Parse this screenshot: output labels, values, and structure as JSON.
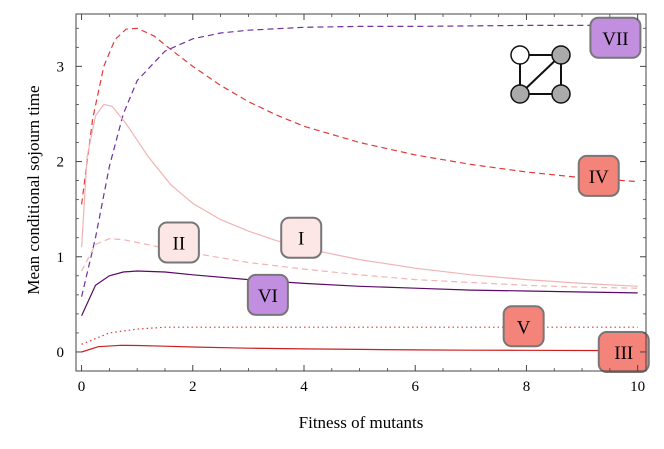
{
  "chart_data": {
    "type": "line",
    "xlabel": "Fitness of mutants",
    "ylabel": "Mean conditional sojourn time",
    "xlim": [
      -0.1,
      10.15
    ],
    "ylim": [
      -0.2,
      3.55
    ],
    "x_ticks": [
      0,
      2,
      4,
      6,
      8,
      10
    ],
    "y_ticks": [
      0,
      1,
      2,
      3
    ],
    "grid": false,
    "inset": "graph: 4 nodes (one white, three grey) in a square with one diagonal, top-right",
    "series": [
      {
        "name": "IV",
        "color": "#e03a3a",
        "dash": "dashed",
        "box_fill": "#f4837a",
        "label_pos": [
          9.3,
          1.85
        ],
        "points": [
          [
            0,
            1.55
          ],
          [
            0.2,
            2.45
          ],
          [
            0.4,
            3.0
          ],
          [
            0.6,
            3.28
          ],
          [
            0.8,
            3.39
          ],
          [
            1.0,
            3.4
          ],
          [
            1.3,
            3.32
          ],
          [
            1.6,
            3.18
          ],
          [
            2,
            3.0
          ],
          [
            2.5,
            2.8
          ],
          [
            3,
            2.63
          ],
          [
            3.5,
            2.49
          ],
          [
            4,
            2.37
          ],
          [
            5,
            2.2
          ],
          [
            6,
            2.07
          ],
          [
            7,
            1.97
          ],
          [
            8,
            1.89
          ],
          [
            9,
            1.83
          ],
          [
            10,
            1.79
          ]
        ]
      },
      {
        "name": "VII",
        "color": "#7030a0",
        "dash": "dashed",
        "box_fill": "#c28fe0",
        "label_pos": [
          9.6,
          3.3
        ],
        "points": [
          [
            0,
            0.58
          ],
          [
            0.25,
            1.2
          ],
          [
            0.5,
            1.95
          ],
          [
            0.75,
            2.5
          ],
          [
            1,
            2.85
          ],
          [
            1.5,
            3.16
          ],
          [
            2,
            3.29
          ],
          [
            2.5,
            3.35
          ],
          [
            3,
            3.38
          ],
          [
            4,
            3.41
          ],
          [
            5,
            3.42
          ],
          [
            6,
            3.42
          ],
          [
            8,
            3.43
          ],
          [
            10,
            3.43
          ]
        ]
      },
      {
        "name": "I",
        "color": "#f2b3b3",
        "dash": "solid",
        "box_fill": "#fde6e6",
        "label_pos": [
          3.95,
          1.2
        ],
        "points": [
          [
            0,
            1.1
          ],
          [
            0.1,
            2.05
          ],
          [
            0.25,
            2.48
          ],
          [
            0.4,
            2.6
          ],
          [
            0.55,
            2.58
          ],
          [
            0.8,
            2.4
          ],
          [
            1.2,
            2.05
          ],
          [
            1.6,
            1.76
          ],
          [
            2,
            1.56
          ],
          [
            2.5,
            1.39
          ],
          [
            3,
            1.27
          ],
          [
            3.5,
            1.17
          ],
          [
            4,
            1.09
          ],
          [
            5,
            0.97
          ],
          [
            6,
            0.88
          ],
          [
            7,
            0.81
          ],
          [
            8,
            0.76
          ],
          [
            9,
            0.72
          ],
          [
            10,
            0.69
          ]
        ]
      },
      {
        "name": "II",
        "color": "#f2b3b3",
        "dash": "dashed",
        "box_fill": "#fde6e6",
        "label_pos": [
          1.75,
          1.15
        ],
        "points": [
          [
            0,
            0.85
          ],
          [
            0.25,
            1.13
          ],
          [
            0.5,
            1.19
          ],
          [
            0.75,
            1.18
          ],
          [
            1,
            1.15
          ],
          [
            1.5,
            1.09
          ],
          [
            2,
            1.04
          ],
          [
            3,
            0.94
          ],
          [
            4,
            0.87
          ],
          [
            5,
            0.81
          ],
          [
            6,
            0.76
          ],
          [
            7,
            0.73
          ],
          [
            8,
            0.7
          ],
          [
            9,
            0.68
          ],
          [
            10,
            0.67
          ]
        ]
      },
      {
        "name": "VI",
        "color": "#5a0a66",
        "dash": "solid",
        "box_fill": "#c28fe0",
        "label_pos": [
          3.35,
          0.6
        ],
        "points": [
          [
            0,
            0.38
          ],
          [
            0.25,
            0.7
          ],
          [
            0.5,
            0.8
          ],
          [
            0.75,
            0.84
          ],
          [
            1,
            0.85
          ],
          [
            1.5,
            0.84
          ],
          [
            2,
            0.81
          ],
          [
            3,
            0.76
          ],
          [
            4,
            0.72
          ],
          [
            5,
            0.69
          ],
          [
            6,
            0.67
          ],
          [
            7,
            0.65
          ],
          [
            8,
            0.64
          ],
          [
            9,
            0.63
          ],
          [
            10,
            0.62
          ]
        ]
      },
      {
        "name": "V",
        "color": "#e03a3a",
        "dash": "dotted",
        "box_fill": "#f4837a",
        "label_pos": [
          7.95,
          0.27
        ],
        "points": [
          [
            0,
            0.08
          ],
          [
            0.5,
            0.2
          ],
          [
            1,
            0.24
          ],
          [
            1.5,
            0.26
          ],
          [
            2,
            0.26
          ],
          [
            3,
            0.26
          ],
          [
            4,
            0.26
          ],
          [
            6,
            0.26
          ],
          [
            8,
            0.26
          ],
          [
            10,
            0.26
          ]
        ]
      },
      {
        "name": "III",
        "color": "#cc1f1f",
        "dash": "solid",
        "box_fill": "#f4837a",
        "label_pos": [
          9.75,
          0.0
        ],
        "points": [
          [
            0,
            0.0
          ],
          [
            0.3,
            0.055
          ],
          [
            0.7,
            0.07
          ],
          [
            1,
            0.068
          ],
          [
            1.5,
            0.06
          ],
          [
            2,
            0.052
          ],
          [
            3,
            0.04
          ],
          [
            4,
            0.032
          ],
          [
            5,
            0.027
          ],
          [
            6,
            0.022
          ],
          [
            7,
            0.019
          ],
          [
            8,
            0.017
          ],
          [
            9,
            0.015
          ],
          [
            10,
            0.014
          ]
        ]
      }
    ]
  }
}
